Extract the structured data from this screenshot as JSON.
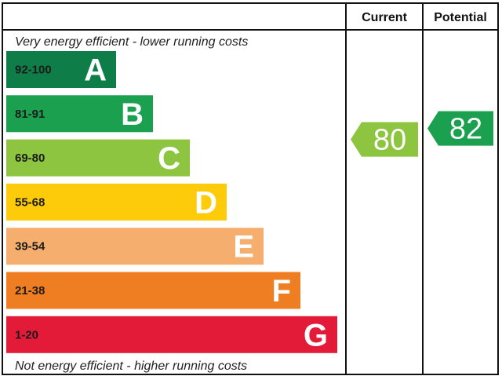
{
  "chart_data": {
    "type": "bar",
    "headers": {
      "current": "Current",
      "potential": "Potential"
    },
    "top_note": "Very energy efficient - lower running costs",
    "bottom_note": "Not energy efficient - higher running costs",
    "bands": [
      {
        "range": "92-100",
        "letter": "A",
        "color": "#0e7d47",
        "dark_range": false
      },
      {
        "range": "81-91",
        "letter": "B",
        "color": "#1ba04f",
        "dark_range": false
      },
      {
        "range": "69-80",
        "letter": "C",
        "color": "#8dc540",
        "dark_range": true
      },
      {
        "range": "55-68",
        "letter": "D",
        "color": "#fecb0a",
        "dark_range": true
      },
      {
        "range": "39-54",
        "letter": "E",
        "color": "#f6ae6e",
        "dark_range": true
      },
      {
        "range": "21-38",
        "letter": "F",
        "color": "#ef7e23",
        "dark_range": true
      },
      {
        "range": "1-20",
        "letter": "G",
        "color": "#e31b39",
        "dark_range": true
      }
    ],
    "current": {
      "value": 80,
      "label": "80",
      "band": "C",
      "color": "#8dc540"
    },
    "potential": {
      "value": 82,
      "label": "82",
      "band": "B",
      "color": "#1ba04f"
    }
  }
}
